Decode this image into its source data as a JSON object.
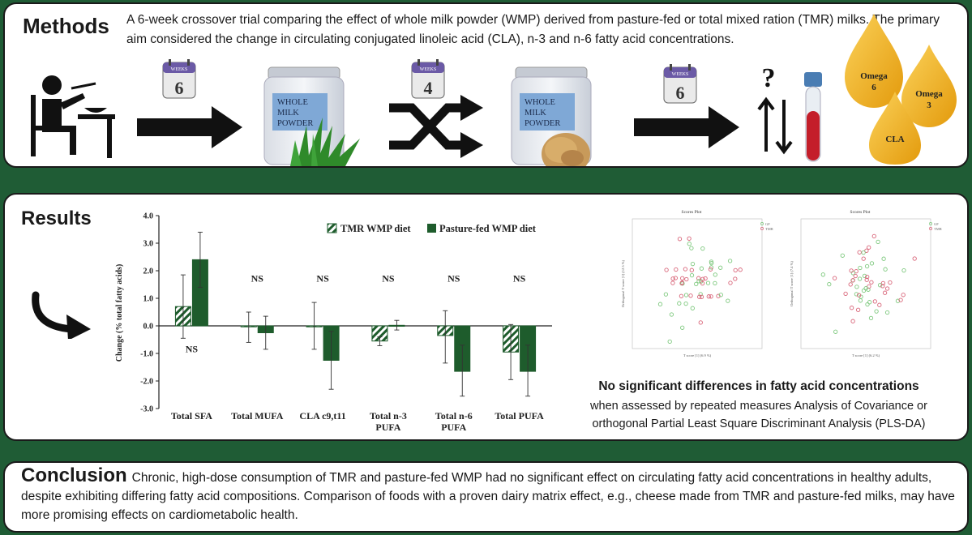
{
  "methods": {
    "heading": "Methods",
    "text": "A 6-week crossover trial comparing the effect of whole milk powder (WMP) derived from pasture-fed or total mixed ration (TMR) milks. The primary aim considered the change in circulating conjugated linoleic acid (CLA), n-3 and n-6 fatty acid concentrations.",
    "calendar_label": "WEEKS",
    "calendar_1": "6",
    "calendar_2": "4",
    "calendar_3": "6",
    "jar_label": [
      "WHOLE",
      "MILK",
      "POWDER"
    ],
    "question_mark": "?",
    "drops": [
      "Omega 6",
      "Omega 3",
      "CLA"
    ],
    "drop_lines": [
      [
        "Omega",
        "6"
      ],
      [
        "Omega",
        "3"
      ],
      [
        "CLA"
      ]
    ]
  },
  "results": {
    "heading": "Results",
    "summary_title": "No significant differences in fatty acid concentrations",
    "summary_body": "when assessed by repeated measures Analysis of Covariance or orthogonal Partial Least Square Discriminant Analysis (PLS-DA)"
  },
  "conclusion": {
    "heading": "Conclusion",
    "text": "Chronic, high-dose consumption of TMR and pasture-fed WMP had no significant effect on circulating fatty acid concentrations in healthy adults, despite exhibiting differing fatty acid compositions. Comparison of foods with a proven dairy matrix effect, e.g., cheese made from TMR and pasture-fed milks, may have more promising effects on cardiometabolic health."
  },
  "chart_data": [
    {
      "type": "bar",
      "title": "",
      "xlabel": "",
      "ylabel": "Change (% total fatty acids)",
      "ylim": [
        -3.0,
        4.0
      ],
      "yticks": [
        "4.0",
        "3.0",
        "2.0",
        "1.0",
        "0.0",
        "-1.0",
        "-2.0",
        "-3.0"
      ],
      "legend_position": "top-right",
      "categories": [
        "Total SFA",
        "Total MUFA",
        "CLA c9,t11",
        "Total n-3 PUFA",
        "Total n-6 PUFA",
        "Total PUFA"
      ],
      "category_lines": [
        [
          "Total SFA"
        ],
        [
          "Total MUFA"
        ],
        [
          "CLA c9,t11"
        ],
        [
          "Total n-3",
          "PUFA"
        ],
        [
          "Total n-6",
          "PUFA"
        ],
        [
          "Total PUFA"
        ]
      ],
      "series": [
        {
          "name": "TMR WMP diet",
          "values": [
            0.7,
            -0.03,
            0.0,
            -0.55,
            -0.35,
            -0.95
          ],
          "err_high": [
            1.85,
            0.5,
            0.85,
            -0.4,
            0.55,
            0.05
          ],
          "err_low": [
            -0.45,
            -0.6,
            -0.85,
            -0.72,
            -1.35,
            -1.95
          ],
          "color": "#1e5c2c",
          "pattern": "hatched"
        },
        {
          "name": "Pasture-fed WMP diet",
          "values": [
            2.4,
            -0.25,
            -1.25,
            0.02,
            -1.65,
            -1.65
          ],
          "err_high": [
            3.4,
            0.35,
            -0.2,
            0.2,
            -0.7,
            -0.7
          ],
          "err_low": [
            1.4,
            -0.85,
            -2.3,
            -0.15,
            -2.55,
            -2.55
          ],
          "color": "#1e5c2c",
          "pattern": "solid"
        }
      ],
      "annotations": [
        "NS",
        "NS",
        "NS",
        "NS",
        "NS",
        "NS",
        "NS"
      ]
    },
    {
      "type": "scatter",
      "title": "Scores Plot",
      "legend": [
        "GF",
        "TMR"
      ],
      "xlabel": "T score [1] (6.9 %)",
      "ylabel": "Orthogonal T score [1] (12.3 %)",
      "series": [
        {
          "name": "GF",
          "color": "#7fc97f"
        },
        {
          "name": "TMR",
          "color": "#d9667a"
        }
      ]
    },
    {
      "type": "scatter",
      "title": "Scores Plot",
      "legend": [
        "GF",
        "TMR"
      ],
      "xlabel": "T score [1] (6.2 %)",
      "ylabel": "Orthogonal T score [1] (7.4 %)",
      "series": [
        {
          "name": "GF",
          "color": "#7fc97f"
        },
        {
          "name": "TMR",
          "color": "#d9667a"
        }
      ]
    }
  ]
}
